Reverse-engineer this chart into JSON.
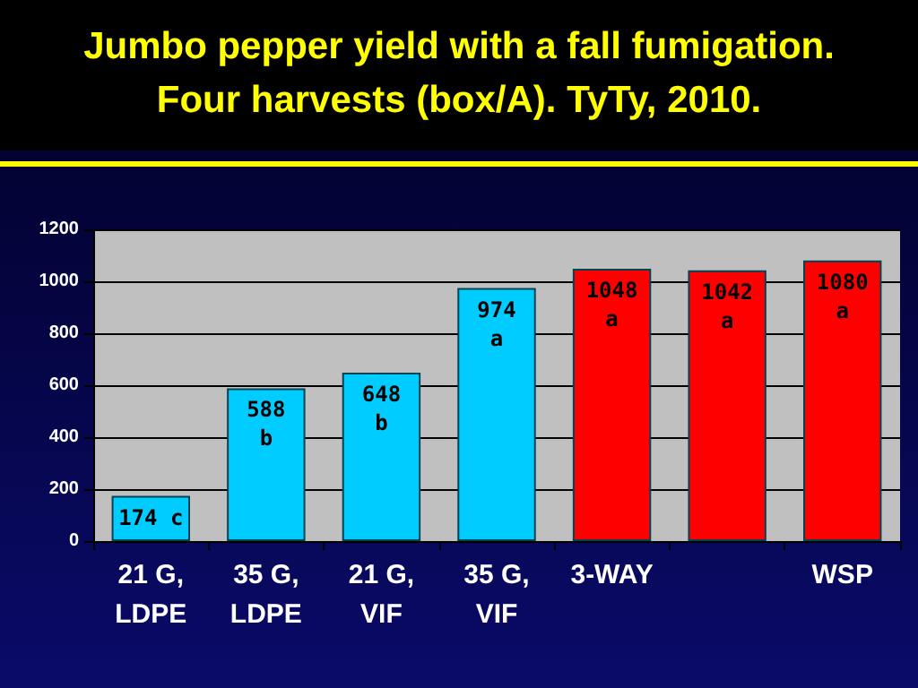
{
  "chart_data": {
    "type": "bar",
    "title": "Jumbo pepper yield with a fall fumigation.\nFour harvests (box/A). TyTy, 2010.",
    "categories": [
      "21 G,\nLDPE",
      "35 G,\nLDPE",
      "21 G,\nVIF",
      "35 G,\nVIF",
      "3-WAY",
      null,
      "WSP"
    ],
    "values": [
      174,
      588,
      648,
      974,
      1048,
      1042,
      1080
    ],
    "colors": [
      "#00ccff",
      "#00ccff",
      "#00ccff",
      "#00ccff",
      "#ff0000",
      "#ff0000",
      "#ff0000"
    ],
    "value_labels": [
      "174 c",
      "588\nb",
      "648\nb",
      "974\na",
      "1048\na",
      "1042\na",
      "1080\na"
    ],
    "ylim": [
      0,
      1200
    ],
    "yticks": [
      0,
      200,
      400,
      600,
      800,
      1000,
      1200
    ],
    "grid": "y"
  }
}
